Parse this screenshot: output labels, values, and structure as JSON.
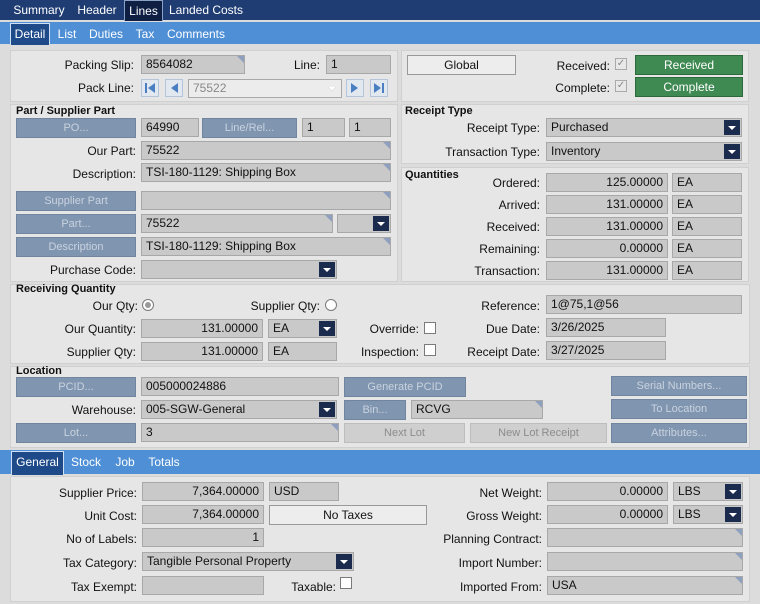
{
  "top_tabs": [
    "Summary",
    "Header",
    "Lines",
    "Landed Costs"
  ],
  "line_tabs": [
    "Detail",
    "List",
    "Duties",
    "Tax",
    "Comments"
  ],
  "header": {
    "packing_slip_label": "Packing Slip:",
    "packing_slip": "8564082",
    "line_label": "Line:",
    "line": "1",
    "pack_line_label": "Pack Line:",
    "pack_line": "75522",
    "global_button": "Global",
    "received_label": "Received:",
    "received_button": "Received",
    "complete_label": "Complete:",
    "complete_button": "Complete"
  },
  "part_supplier": {
    "title": "Part / Supplier Part",
    "po_button": "PO...",
    "po": "64990",
    "line_rel_button": "Line/Rel...",
    "line": "1",
    "rel": "1",
    "our_part_label": "Our Part:",
    "our_part": "75522",
    "description_label": "Description:",
    "description": "TSI-180-1129: Shipping Box",
    "supplier_part_button": "Supplier Part",
    "supplier_part": "",
    "part_button": "Part...",
    "part": "75522",
    "revision": "",
    "description_button": "Description",
    "description2": "TSI-180-1129: Shipping Box",
    "purchase_code_label": "Purchase Code:",
    "purchase_code": ""
  },
  "receipt_type": {
    "title": "Receipt Type",
    "receipt_type_label": "Receipt Type:",
    "receipt_type": "Purchased",
    "transaction_type_label": "Transaction Type:",
    "transaction_type": "Inventory"
  },
  "quantities": {
    "title": "Quantities",
    "rows": [
      {
        "label": "Ordered:",
        "value": "125.00000",
        "uom": "EA"
      },
      {
        "label": "Arrived:",
        "value": "131.00000",
        "uom": "EA"
      },
      {
        "label": "Received:",
        "value": "131.00000",
        "uom": "EA"
      },
      {
        "label": "Remaining:",
        "value": "0.00000",
        "uom": "EA"
      },
      {
        "label": "Transaction:",
        "value": "131.00000",
        "uom": "EA"
      }
    ]
  },
  "receiving": {
    "title": "Receiving Quantity",
    "our_qty_label": "Our Qty:",
    "supplier_qty_radio_label": "Supplier Qty:",
    "our_quantity_label": "Our Quantity:",
    "our_quantity": "131.00000",
    "our_uom": "EA",
    "supplier_qty_label": "Supplier Qty:",
    "supplier_qty": "131.00000",
    "supplier_uom": "EA",
    "override_label": "Override:",
    "inspection_label": "Inspection:",
    "reference_label": "Reference:",
    "reference": "1@75,1@56",
    "due_date_label": "Due Date:",
    "due_date": "3/26/2025",
    "receipt_date_label": "Receipt Date:",
    "receipt_date": "3/27/2025"
  },
  "location": {
    "title": "Location",
    "pcid_button": "PCID...",
    "pcid": "005000024886",
    "generate_pcid_button": "Generate PCID",
    "serial_numbers_button": "Serial Numbers...",
    "warehouse_label": "Warehouse:",
    "warehouse": "005-SGW-General",
    "bin_button": "Bin...",
    "bin": "RCVG",
    "to_location_button": "To Location",
    "lot_button": "Lot...",
    "lot": "3",
    "next_lot_button": "Next Lot",
    "new_lot_receipt_button": "New Lot Receipt",
    "attributes_button": "Attributes..."
  },
  "bottom_tabs": [
    "General",
    "Stock",
    "Job",
    "Totals"
  ],
  "general": {
    "supplier_price_label": "Supplier Price:",
    "supplier_price": "7,364.00000",
    "currency": "USD",
    "unit_cost_label": "Unit Cost:",
    "unit_cost": "7,364.00000",
    "no_taxes_button": "No Taxes",
    "no_of_labels_label": "No of Labels:",
    "no_of_labels": "1",
    "tax_category_label": "Tax Category:",
    "tax_category": "Tangible Personal Property",
    "tax_exempt_label": "Tax Exempt:",
    "tax_exempt": "",
    "taxable_label": "Taxable:",
    "net_weight_label": "Net Weight:",
    "net_weight": "0.00000",
    "net_weight_uom": "LBS",
    "gross_weight_label": "Gross Weight:",
    "gross_weight": "0.00000",
    "gross_weight_uom": "LBS",
    "planning_contract_label": "Planning Contract:",
    "planning_contract": "",
    "import_number_label": "Import Number:",
    "import_number": "",
    "imported_from_label": "Imported From:",
    "imported_from": "USA"
  }
}
